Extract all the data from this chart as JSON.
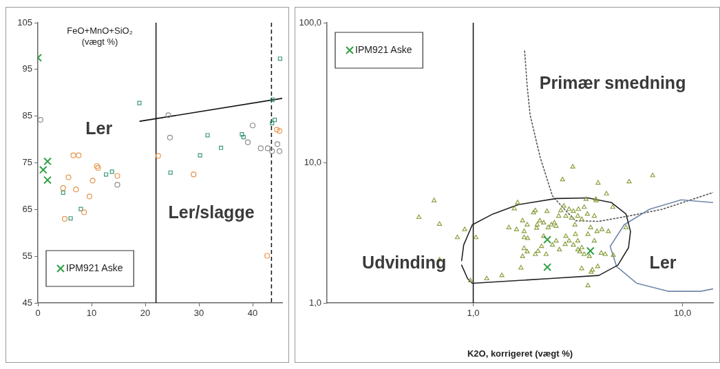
{
  "chart_data": [
    {
      "type": "scatter",
      "ylabel": "FeO+MnO+SiO₂ (vægt %)",
      "xlim": [
        0,
        45.5
      ],
      "ylim": [
        45,
        105
      ],
      "xticks": [
        0,
        10,
        20,
        30,
        40
      ],
      "yticks": [
        45,
        55,
        65,
        75,
        85,
        95,
        105
      ],
      "grid": false,
      "legend": "bottom left",
      "series": [
        {
          "name": "IPM921 Aske",
          "color": "#2ea043",
          "marker": "cross",
          "x": [
            0,
            1.8,
            1.0,
            1.8
          ],
          "values": [
            97.5,
            75.3,
            73.5,
            71.3
          ]
        },
        {
          "color": "#e8944a",
          "marker": "circle",
          "x": [
            6.6,
            7.6,
            11.0,
            11.2,
            5.7,
            10.2,
            14.8,
            7.1,
            9.6,
            5.0,
            8.6,
            4.7,
            22.4,
            29.0,
            42.7,
            44.5,
            45.0
          ],
          "values": [
            76.6,
            76.6,
            74.3,
            73.9,
            71.9,
            71.2,
            72.2,
            69.3,
            67.8,
            63.0,
            64.4,
            69.6,
            76.5,
            72.5,
            55.1,
            82.1,
            81.8
          ]
        },
        {
          "color": "#8c8c8c",
          "marker": "circle",
          "x": [
            0.5,
            24.3,
            24.6,
            40.0,
            39.1,
            41.5,
            42.8,
            43.6,
            44.6,
            45.0,
            14.8
          ],
          "values": [
            84.2,
            85.2,
            80.4,
            83.0,
            79.4,
            78.1,
            78.1,
            77.5,
            79.0,
            77.5,
            70.3
          ]
        },
        {
          "color": "#3a9a7a",
          "marker": "square",
          "x": [
            18.9,
            24.7,
            30.2,
            31.6,
            34.1,
            38.0,
            38.3,
            43.6,
            44.1,
            43.7,
            45.1,
            12.7,
            13.8,
            4.7,
            8.0,
            6.1
          ],
          "values": [
            87.8,
            72.9,
            76.6,
            80.9,
            78.2,
            81.1,
            80.5,
            83.5,
            84.2,
            88.5,
            97.3,
            72.5,
            73.1,
            68.6,
            65.1,
            63.1
          ]
        },
        {
          "type": "line",
          "color": "#111111",
          "marker": "none",
          "line_style": "solid",
          "x": [
            19,
            45.5
          ],
          "values": [
            83.9,
            88.8
          ]
        }
      ],
      "ref_lines": [
        {
          "axis": "x",
          "value": 22,
          "color": "#111111",
          "line_style": "solid"
        },
        {
          "axis": "x",
          "value": 43.5,
          "color": "#111111",
          "line_style": "dashed"
        }
      ],
      "annotations": [
        "Ler",
        "Ler/slagge"
      ]
    },
    {
      "type": "scatter",
      "xlabel": "K2O, korrigeret (vægt %)",
      "log": "xy",
      "xlim": [
        0.2,
        14
      ],
      "ylim": [
        1,
        100
      ],
      "xticks": [
        {
          "value": 1,
          "label": "1,0"
        },
        {
          "value": 10,
          "label": "10,0"
        }
      ],
      "yticks": [
        {
          "value": 1,
          "label": "1,0"
        },
        {
          "value": 10,
          "label": "10,0"
        },
        {
          "value": 100,
          "label": "100,0"
        }
      ],
      "grid": false,
      "legend": "top left",
      "series": [
        {
          "name": "IPM921 Aske",
          "color": "#2ea043",
          "marker": "cross",
          "x": [
            2.26,
            2.26,
            3.63
          ],
          "values": [
            2.83,
            1.8,
            2.35
          ]
        },
        {
          "color": "#8aa040",
          "marker": "triangle",
          "x": [
            0.55,
            0.65,
            0.69,
            0.91,
            0.84,
            1.03,
            0.69,
            0.97,
            1.16,
            1.37,
            1.63,
            1.57,
            1.48,
            1.61,
            1.72,
            1.75,
            1.75,
            1.81,
            1.82,
            1.94,
            1.98,
            2.02,
            2.01,
            2.08,
            2.17,
            2.25,
            2.28,
            2.36,
            2.44,
            2.49,
            2.56,
            2.62,
            2.71,
            2.77,
            2.87,
            2.95,
            3.01,
            3.06,
            3.16,
            3.18,
            3.3,
            3.39,
            3.46,
            3.51,
            3.64,
            3.79,
            3.85,
            3.9,
            4.12,
            4.33,
            1.72,
            1.75,
            1.81,
            1.69,
            1.98,
            2.04,
            2.12,
            2.23,
            2.17,
            2.39,
            2.49,
            2.58,
            2.75,
            2.77,
            2.87,
            3.01,
            3.08,
            3.16,
            3.23,
            3.3,
            3.39,
            3.16,
            3.53,
            3.79,
            3.59,
            3.3,
            3.71,
            3.93,
            3.66,
            4.09,
            4.27,
            4.67,
            4.42,
            4.64,
            5.37,
            3.53,
            2.67,
            2.99,
            3.95,
            5.56,
            7.2,
            3.87
          ],
          "values": [
            4.08,
            5.38,
            3.65,
            3.34,
            2.93,
            2.93,
            2.03,
            1.44,
            1.49,
            1.57,
            5.2,
            4.71,
            3.45,
            3.34,
            3.86,
            3.24,
            2.93,
            3.61,
            2.89,
            4.41,
            4.56,
            3.61,
            3.42,
            3.86,
            3.73,
            4.51,
            3.45,
            3.61,
            3.73,
            3.53,
            4.17,
            4.56,
            4.92,
            4.17,
            4.66,
            4.04,
            4.51,
            3.61,
            4.17,
            4.66,
            3.95,
            4.82,
            5.5,
            4.31,
            3.45,
            4.17,
            5.5,
            3.24,
            3.34,
            6.01,
            2.15,
            2.45,
            2.32,
            1.78,
            2.22,
            2.34,
            2.53,
            2.22,
            2.99,
            2.59,
            2.77,
            2.4,
            2.62,
            2.99,
            2.77,
            2.59,
            3.09,
            2.4,
            2.32,
            2.48,
            2.22,
            2.77,
            3.09,
            2.77,
            2.15,
            1.76,
            1.72,
            1.82,
            1.66,
            2.27,
            2.22,
            2.19,
            3.24,
            4.82,
            3.45,
            1.33,
            7.59,
            9.36,
            7.18,
            7.33,
            8.11,
            5.38
          ]
        },
        {
          "type": "line",
          "color": "#222222",
          "marker": "none",
          "line_style": "solid",
          "x": [
            0.88,
            0.94,
            0.99,
            2.28,
            3.98,
            4.91,
            5.52,
            5.64,
            5.37,
            4.58,
            3.53,
            2.49,
            1.64,
            1.24,
            0.99,
            0.9,
            0.88
          ],
          "values": [
            1.86,
            1.49,
            1.38,
            1.49,
            1.57,
            1.86,
            2.48,
            3.24,
            4.31,
            5.2,
            5.62,
            5.56,
            5.03,
            4.31,
            3.61,
            2.59,
            2.0
          ]
        },
        {
          "type": "line",
          "color": "#6f88aa",
          "marker": "none",
          "line_style": "solid",
          "x": [
            14,
            9.86,
            6.95,
            5.26,
            4.51,
            4.84,
            6.05,
            8.58,
            12.2,
            14
          ],
          "values": [
            5.2,
            5.44,
            4.66,
            3.61,
            2.53,
            1.82,
            1.38,
            1.21,
            1.21,
            1.26
          ]
        },
        {
          "type": "line",
          "color": "#555555",
          "marker": "none",
          "line_style": "dotted",
          "x": [
            1.76,
            1.81,
            1.87,
            2.09,
            2.39,
            2.67,
            3.08,
            3.98,
            5.52,
            8.0,
            14.0
          ],
          "values": [
            62.8,
            35.3,
            21.9,
            10.9,
            5.81,
            4.82,
            3.86,
            3.82,
            4.17,
            4.66,
            6.14
          ]
        }
      ],
      "ref_lines": [
        {
          "axis": "x",
          "value": 1,
          "color": "#111111",
          "line_style": "solid"
        }
      ],
      "annotations": [
        "Primær smedning",
        "Udvinding",
        "Ler"
      ]
    }
  ]
}
